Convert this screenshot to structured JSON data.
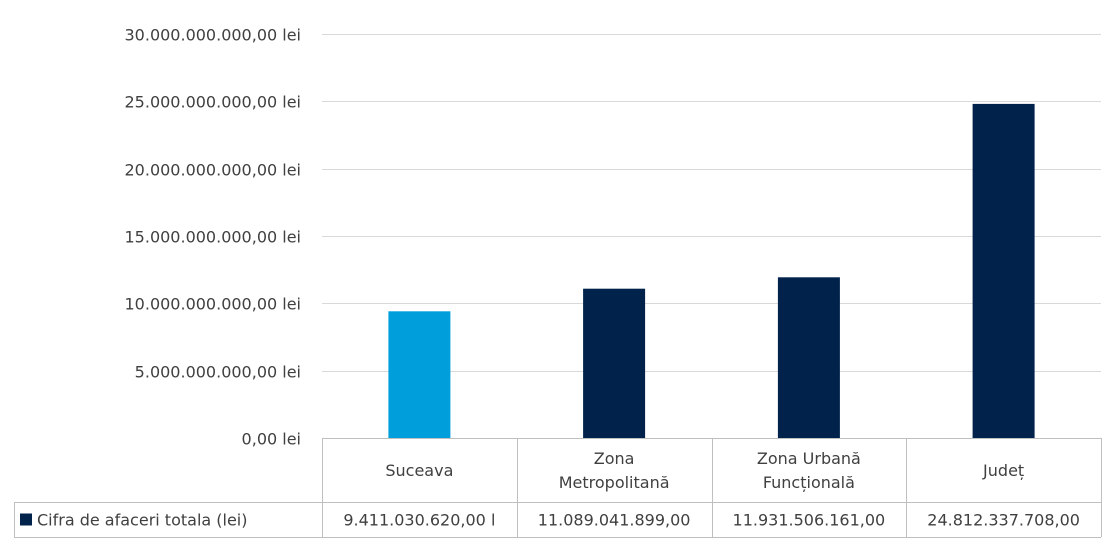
{
  "chart_data": {
    "type": "bar",
    "categories": [
      "Suceava",
      "Zona Metropolitană",
      "Zona Urbană Funcțională",
      "Județ"
    ],
    "category_lines": [
      [
        "Suceava"
      ],
      [
        "Zona",
        "Metropolitană"
      ],
      [
        "Zona Urbană",
        "Funcțională"
      ],
      [
        "Județ"
      ]
    ],
    "series": [
      {
        "name": "Cifra de afaceri totala (lei)",
        "values": [
          9411030620,
          11089041899,
          11931506161,
          24812337708
        ],
        "bar_colors": [
          "#009fdb",
          "#00224b",
          "#00224b",
          "#00224b"
        ]
      }
    ],
    "table_values": [
      "9.411.030.620,00 l",
      "11.089.041.899,00",
      "11.931.506.161,00",
      "24.812.337.708,00"
    ],
    "ylim": [
      0,
      30000000000
    ],
    "y_ticks": [
      0,
      5000000000,
      10000000000,
      15000000000,
      20000000000,
      25000000000,
      30000000000
    ],
    "y_tick_labels": [
      "0,00 lei",
      "5.000.000.000,00 lei",
      "10.000.000.000,00 lei",
      "15.000.000.000,00 lei",
      "20.000.000.000,00 lei",
      "25.000.000.000,00 lei",
      "30.000.000.000,00 lei"
    ],
    "grid": true,
    "legend": "data-table",
    "legend_key_color": "#00224b",
    "title": "",
    "xlabel": "",
    "ylabel": ""
  }
}
